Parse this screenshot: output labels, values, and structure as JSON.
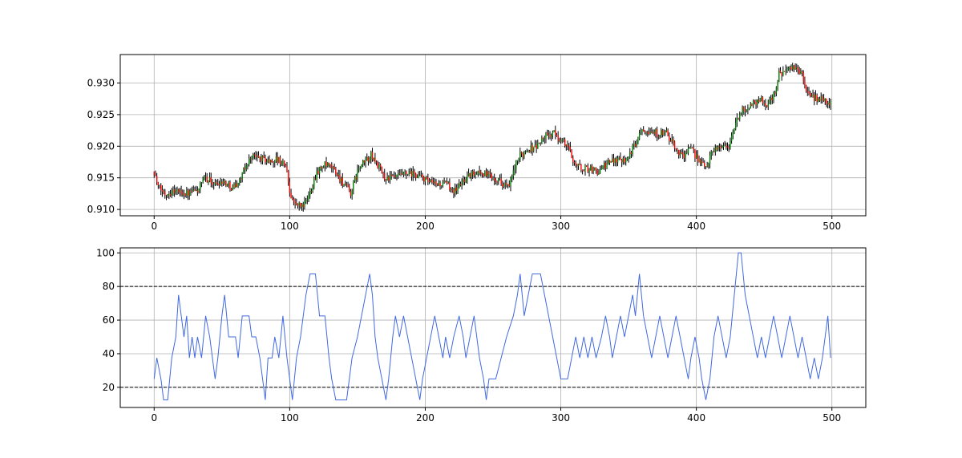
{
  "chart_data": [
    {
      "type": "candlestick",
      "x_range": [
        -25,
        525
      ],
      "ylim": [
        0.909,
        0.9345
      ],
      "xticks": [
        0,
        100,
        200,
        300,
        400,
        500
      ],
      "yticks": [
        0.91,
        0.915,
        0.92,
        0.925,
        0.93
      ],
      "grid": true,
      "up_color": "#008000",
      "down_color": "#ff0000",
      "wick_color": "#000000",
      "n_candles": 500,
      "close_anchors": [
        [
          0,
          0.916
        ],
        [
          3,
          0.9135
        ],
        [
          8,
          0.9125
        ],
        [
          15,
          0.913
        ],
        [
          25,
          0.9125
        ],
        [
          32,
          0.913
        ],
        [
          38,
          0.915
        ],
        [
          45,
          0.914
        ],
        [
          50,
          0.9145
        ],
        [
          58,
          0.9135
        ],
        [
          63,
          0.9145
        ],
        [
          68,
          0.917
        ],
        [
          72,
          0.9185
        ],
        [
          80,
          0.918
        ],
        [
          86,
          0.9175
        ],
        [
          90,
          0.918
        ],
        [
          97,
          0.917
        ],
        [
          100,
          0.913
        ],
        [
          103,
          0.911
        ],
        [
          108,
          0.9105
        ],
        [
          112,
          0.911
        ],
        [
          117,
          0.914
        ],
        [
          120,
          0.916
        ],
        [
          126,
          0.917
        ],
        [
          132,
          0.9165
        ],
        [
          140,
          0.914
        ],
        [
          145,
          0.9125
        ],
        [
          150,
          0.916
        ],
        [
          155,
          0.9175
        ],
        [
          160,
          0.9185
        ],
        [
          165,
          0.917
        ],
        [
          170,
          0.915
        ],
        [
          177,
          0.915
        ],
        [
          185,
          0.9155
        ],
        [
          192,
          0.9155
        ],
        [
          198,
          0.915
        ],
        [
          205,
          0.914
        ],
        [
          215,
          0.914
        ],
        [
          222,
          0.913
        ],
        [
          230,
          0.915
        ],
        [
          238,
          0.916
        ],
        [
          245,
          0.9155
        ],
        [
          252,
          0.915
        ],
        [
          258,
          0.914
        ],
        [
          262,
          0.9135
        ],
        [
          265,
          0.916
        ],
        [
          270,
          0.9185
        ],
        [
          275,
          0.9195
        ],
        [
          282,
          0.92
        ],
        [
          288,
          0.9215
        ],
        [
          295,
          0.922
        ],
        [
          300,
          0.921
        ],
        [
          305,
          0.92
        ],
        [
          310,
          0.9175
        ],
        [
          315,
          0.9165
        ],
        [
          320,
          0.9165
        ],
        [
          328,
          0.916
        ],
        [
          333,
          0.917
        ],
        [
          340,
          0.918
        ],
        [
          347,
          0.918
        ],
        [
          352,
          0.919
        ],
        [
          356,
          0.921
        ],
        [
          360,
          0.923
        ],
        [
          365,
          0.9225
        ],
        [
          372,
          0.922
        ],
        [
          378,
          0.922
        ],
        [
          385,
          0.9195
        ],
        [
          390,
          0.9185
        ],
        [
          395,
          0.9195
        ],
        [
          400,
          0.9185
        ],
        [
          404,
          0.917
        ],
        [
          408,
          0.917
        ],
        [
          412,
          0.9195
        ],
        [
          418,
          0.92
        ],
        [
          424,
          0.92
        ],
        [
          428,
          0.923
        ],
        [
          433,
          0.9255
        ],
        [
          440,
          0.9265
        ],
        [
          447,
          0.9275
        ],
        [
          452,
          0.9265
        ],
        [
          457,
          0.928
        ],
        [
          461,
          0.9315
        ],
        [
          468,
          0.932
        ],
        [
          474,
          0.9325
        ],
        [
          478,
          0.931
        ],
        [
          482,
          0.9285
        ],
        [
          488,
          0.9275
        ],
        [
          494,
          0.9275
        ],
        [
          499,
          0.9265
        ]
      ]
    },
    {
      "type": "line",
      "x_range": [
        -25,
        525
      ],
      "ylim": [
        8,
        103
      ],
      "xticks": [
        0,
        100,
        200,
        300,
        400,
        500
      ],
      "yticks": [
        20,
        40,
        60,
        80,
        100
      ],
      "grid": true,
      "line_color": "#4169e1",
      "reference_lines": [
        20,
        80
      ],
      "y_anchors": [
        [
          0,
          25
        ],
        [
          2,
          37.5
        ],
        [
          5,
          25
        ],
        [
          7,
          12.5
        ],
        [
          10,
          12.5
        ],
        [
          13,
          37.5
        ],
        [
          16,
          50
        ],
        [
          18,
          75
        ],
        [
          20,
          62.5
        ],
        [
          22,
          50
        ],
        [
          24,
          62.5
        ],
        [
          26,
          37.5
        ],
        [
          28,
          50
        ],
        [
          30,
          37.5
        ],
        [
          32,
          50
        ],
        [
          35,
          37.5
        ],
        [
          38,
          62.5
        ],
        [
          41,
          50
        ],
        [
          43,
          37.5
        ],
        [
          45,
          25
        ],
        [
          47,
          37.5
        ],
        [
          50,
          62.5
        ],
        [
          52,
          75
        ],
        [
          55,
          50
        ],
        [
          60,
          50
        ],
        [
          62,
          37.5
        ],
        [
          65,
          62.5
        ],
        [
          70,
          62.5
        ],
        [
          72,
          50
        ],
        [
          75,
          50
        ],
        [
          78,
          37.5
        ],
        [
          80,
          25
        ],
        [
          82,
          12.5
        ],
        [
          84,
          37.5
        ],
        [
          87,
          37.5
        ],
        [
          89,
          50
        ],
        [
          92,
          37.5
        ],
        [
          95,
          62.5
        ],
        [
          98,
          37.5
        ],
        [
          100,
          25
        ],
        [
          102,
          12.5
        ],
        [
          105,
          37.5
        ],
        [
          108,
          50
        ],
        [
          112,
          75
        ],
        [
          115,
          87.5
        ],
        [
          119,
          87.5
        ],
        [
          122,
          62.5
        ],
        [
          126,
          62.5
        ],
        [
          129,
          37.5
        ],
        [
          131,
          25
        ],
        [
          134,
          12.5
        ],
        [
          142,
          12.5
        ],
        [
          146,
          37.5
        ],
        [
          150,
          50
        ],
        [
          153,
          62.5
        ],
        [
          156,
          75
        ],
        [
          159,
          87.5
        ],
        [
          161,
          75
        ],
        [
          163,
          50
        ],
        [
          165,
          37.5
        ],
        [
          168,
          25
        ],
        [
          171,
          12.5
        ],
        [
          173,
          25
        ],
        [
          176,
          50
        ],
        [
          178,
          62.5
        ],
        [
          181,
          50
        ],
        [
          184,
          62.5
        ],
        [
          187,
          50
        ],
        [
          190,
          37.5
        ],
        [
          193,
          25
        ],
        [
          196,
          12.5
        ],
        [
          198,
          25
        ],
        [
          201,
          37.5
        ],
        [
          204,
          50
        ],
        [
          207,
          62.5
        ],
        [
          210,
          50
        ],
        [
          213,
          37.5
        ],
        [
          215,
          50
        ],
        [
          218,
          37.5
        ],
        [
          221,
          50
        ],
        [
          225,
          62.5
        ],
        [
          228,
          50
        ],
        [
          230,
          37.5
        ],
        [
          233,
          50
        ],
        [
          236,
          62.5
        ],
        [
          240,
          37.5
        ],
        [
          243,
          25
        ],
        [
          245,
          12.5
        ],
        [
          247,
          25
        ],
        [
          252,
          25
        ],
        [
          256,
          37.5
        ],
        [
          260,
          50
        ],
        [
          265,
          62.5
        ],
        [
          268,
          75
        ],
        [
          270,
          87.5
        ],
        [
          273,
          62.5
        ],
        [
          276,
          75
        ],
        [
          279,
          87.5
        ],
        [
          285,
          87.5
        ],
        [
          288,
          75
        ],
        [
          291,
          62.5
        ],
        [
          294,
          50
        ],
        [
          297,
          37.5
        ],
        [
          300,
          25
        ],
        [
          305,
          25
        ],
        [
          308,
          37.5
        ],
        [
          311,
          50
        ],
        [
          314,
          37.5
        ],
        [
          317,
          50
        ],
        [
          320,
          37.5
        ],
        [
          323,
          50
        ],
        [
          326,
          37.5
        ],
        [
          330,
          50
        ],
        [
          333,
          62.5
        ],
        [
          336,
          50
        ],
        [
          338,
          37.5
        ],
        [
          341,
          50
        ],
        [
          344,
          62.5
        ],
        [
          347,
          50
        ],
        [
          350,
          62.5
        ],
        [
          353,
          75
        ],
        [
          355,
          62.5
        ],
        [
          358,
          87.5
        ],
        [
          361,
          62.5
        ],
        [
          364,
          50
        ],
        [
          367,
          37.5
        ],
        [
          370,
          50
        ],
        [
          373,
          62.5
        ],
        [
          376,
          50
        ],
        [
          379,
          37.5
        ],
        [
          382,
          50
        ],
        [
          385,
          62.5
        ],
        [
          388,
          50
        ],
        [
          391,
          37.5
        ],
        [
          394,
          25
        ],
        [
          396,
          37.5
        ],
        [
          399,
          50
        ],
        [
          402,
          37.5
        ],
        [
          404,
          25
        ],
        [
          407,
          12.5
        ],
        [
          410,
          25
        ],
        [
          413,
          50
        ],
        [
          416,
          62.5
        ],
        [
          419,
          50
        ],
        [
          422,
          37.5
        ],
        [
          425,
          50
        ],
        [
          428,
          75
        ],
        [
          431,
          100
        ],
        [
          433,
          100
        ],
        [
          436,
          75
        ],
        [
          439,
          62.5
        ],
        [
          442,
          50
        ],
        [
          445,
          37.5
        ],
        [
          448,
          50
        ],
        [
          451,
          37.5
        ],
        [
          454,
          50
        ],
        [
          457,
          62.5
        ],
        [
          460,
          50
        ],
        [
          463,
          37.5
        ],
        [
          466,
          50
        ],
        [
          469,
          62.5
        ],
        [
          472,
          50
        ],
        [
          475,
          37.5
        ],
        [
          478,
          50
        ],
        [
          481,
          37.5
        ],
        [
          484,
          25
        ],
        [
          487,
          37.5
        ],
        [
          490,
          25
        ],
        [
          493,
          37.5
        ],
        [
          495,
          50
        ],
        [
          497,
          62.5
        ],
        [
          499,
          37.5
        ]
      ]
    }
  ]
}
